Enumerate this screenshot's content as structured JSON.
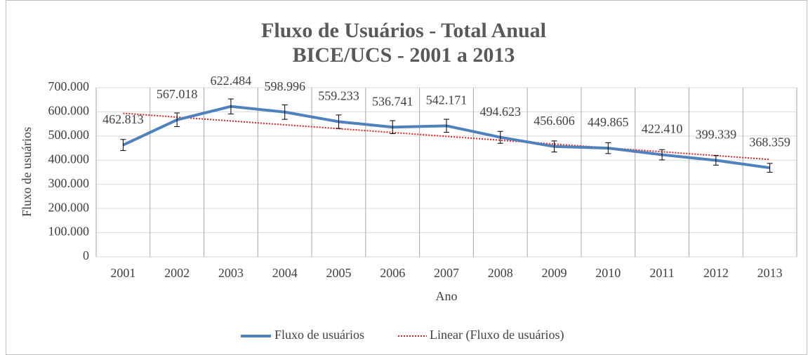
{
  "chart_data": {
    "type": "line",
    "title": [
      "Fluxo de Usuários - Total Anual",
      "BICE/UCS - 2001 a 2013"
    ],
    "xlabel": "Ano",
    "ylabel": "Fluxo de usuários",
    "categories": [
      "2001",
      "2002",
      "2003",
      "2004",
      "2005",
      "2006",
      "2007",
      "2008",
      "2009",
      "2010",
      "2011",
      "2012",
      "2013"
    ],
    "series": [
      {
        "name": "Fluxo de usuários",
        "color": "#4f81bd",
        "values": [
          462813,
          567018,
          622484,
          598996,
          559233,
          536741,
          542171,
          494623,
          456606,
          449865,
          422410,
          399339,
          368359
        ],
        "value_labels": [
          "462.813",
          "567.018",
          "622.484",
          "598.996",
          "559.233",
          "536.741",
          "542.171",
          "494.623",
          "456.606",
          "449.865",
          "422.410",
          "399.339",
          "368.359"
        ],
        "errors": [
          23141,
          28351,
          31124,
          29950,
          27962,
          26837,
          27109,
          24731,
          22830,
          22493,
          21121,
          19967,
          18418
        ]
      }
    ],
    "trendline": {
      "name": "Linear (Fluxo de usuários)",
      "color": "#e02020",
      "type": "linear"
    },
    "ylim": [
      0,
      700000
    ],
    "yticks": [
      0,
      {
        "value": 100000,
        "label": "100.000"
      },
      {
        "value": 200000,
        "label": "200.000"
      },
      {
        "value": 300000,
        "label": "300.000"
      },
      {
        "value": 400000,
        "label": "400.000"
      },
      {
        "value": 500000,
        "label": "500.000"
      },
      {
        "value": 600000,
        "label": "600.000"
      },
      {
        "value": 700000,
        "label": "700.000"
      }
    ],
    "grid": true,
    "legend": "bottom"
  }
}
